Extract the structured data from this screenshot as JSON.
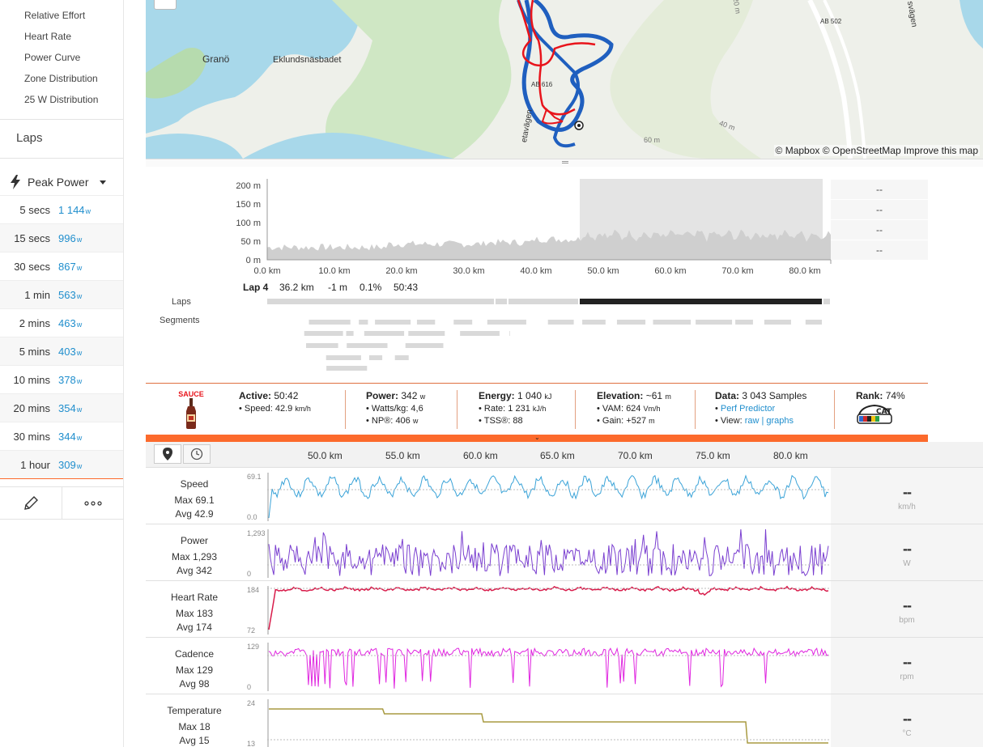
{
  "sidebar": {
    "analysis_links": [
      "Relative Effort",
      "Heart Rate",
      "Power Curve",
      "Zone Distribution",
      "25 W Distribution"
    ],
    "laps_title": "Laps",
    "peak_power": {
      "label": "Peak Power",
      "unit": "w",
      "rows": [
        {
          "duration": "5 secs",
          "value": "1 144"
        },
        {
          "duration": "15 secs",
          "value": "996"
        },
        {
          "duration": "30 secs",
          "value": "867"
        },
        {
          "duration": "1 min",
          "value": "563"
        },
        {
          "duration": "2 mins",
          "value": "463"
        },
        {
          "duration": "5 mins",
          "value": "403"
        },
        {
          "duration": "10 mins",
          "value": "378"
        },
        {
          "duration": "20 mins",
          "value": "354"
        },
        {
          "duration": "30 mins",
          "value": "344"
        },
        {
          "duration": "1 hour",
          "value": "309"
        }
      ]
    }
  },
  "map": {
    "attribution": "© Mapbox © OpenStreetMap Improve this map",
    "labels": [
      "Granö",
      "Eklundsnäsbadet",
      "AB 616",
      "AB 502",
      "20 m",
      "40 m",
      "60 m",
      "etavägen",
      "svägen"
    ],
    "route_colors": {
      "ride": "#1f5fbf",
      "other": "#e8141b"
    }
  },
  "elevation": {
    "y_ticks": [
      "200 m",
      "150 m",
      "100 m",
      "50 m",
      "0 m"
    ],
    "x_ticks": [
      "0.0 km",
      "10.0 km",
      "20.0 km",
      "30.0 km",
      "40.0 km",
      "50.0 km",
      "60.0 km",
      "70.0 km",
      "80.0 km"
    ],
    "side_values": [
      "--",
      "--",
      "--",
      "--"
    ],
    "lap": {
      "name": "Lap 4",
      "distance": "36.2 km",
      "elev": "-1 m",
      "grade": "0.1%",
      "time": "50:43"
    },
    "row_labels": {
      "laps": "Laps",
      "segments": "Segments"
    }
  },
  "stats": {
    "sauce_label": "SAUCE",
    "active": {
      "label": "Active:",
      "value": "50:42",
      "speed_label": "Speed:",
      "speed": "42.9",
      "speed_unit": "km/h"
    },
    "power": {
      "label": "Power:",
      "value": "342",
      "unit": "w",
      "wkg_label": "Watts/kg:",
      "wkg": "4,6",
      "np_label": "NP®:",
      "np": "406",
      "np_unit": "w"
    },
    "energy": {
      "label": "Energy:",
      "value": "1 040",
      "unit": "kJ",
      "rate_label": "Rate:",
      "rate": "1 231",
      "rate_unit": "kJ/h",
      "tss_label": "TSS®:",
      "tss": "88"
    },
    "elevation": {
      "label": "Elevation:",
      "value": "~61",
      "unit": "m",
      "vam_label": "VAM:",
      "vam": "624",
      "vam_unit": "Vm/h",
      "gain_label": "Gain:",
      "gain": "+527",
      "gain_unit": "m"
    },
    "data": {
      "label": "Data:",
      "value": "3 043 Samples",
      "perf": "Perf Predictor",
      "view_label": "View:",
      "raw": "raw",
      "sep": "|",
      "graphs": "graphs"
    },
    "rank": {
      "label": "Rank:",
      "value": "74%",
      "badge": "CAT 1"
    }
  },
  "streams": {
    "km_ticks": [
      "50.0 km",
      "55.0 km",
      "60.0 km",
      "65.0 km",
      "70.0 km",
      "75.0 km",
      "80.0 km"
    ],
    "rows": [
      {
        "name": "Speed",
        "max": "Max 69.1",
        "avg": "Avg 42.9",
        "ymax": "69.1",
        "ymin": "0.0",
        "unit": "km/h",
        "value": "--",
        "color": "#3aa3d8"
      },
      {
        "name": "Power",
        "max": "Max 1,293",
        "avg": "Avg 342",
        "ymax": "1,293",
        "ymin": "0",
        "unit": "W",
        "value": "--",
        "color": "#7a3fd0"
      },
      {
        "name": "Heart Rate",
        "max": "Max 183",
        "avg": "Avg 174",
        "ymax": "184",
        "ymin": "72",
        "unit": "bpm",
        "value": "--",
        "color": "#d81b4a"
      },
      {
        "name": "Cadence",
        "max": "Max 129",
        "avg": "Avg 98",
        "ymax": "129",
        "ymin": "0",
        "unit": "rpm",
        "value": "--",
        "color": "#e025e0"
      },
      {
        "name": "Temperature",
        "max": "Max 18",
        "avg": "Avg 15",
        "ymax": "24",
        "ymin": "13",
        "unit": "°C",
        "value": "--",
        "color": "#a89a40"
      }
    ]
  }
}
